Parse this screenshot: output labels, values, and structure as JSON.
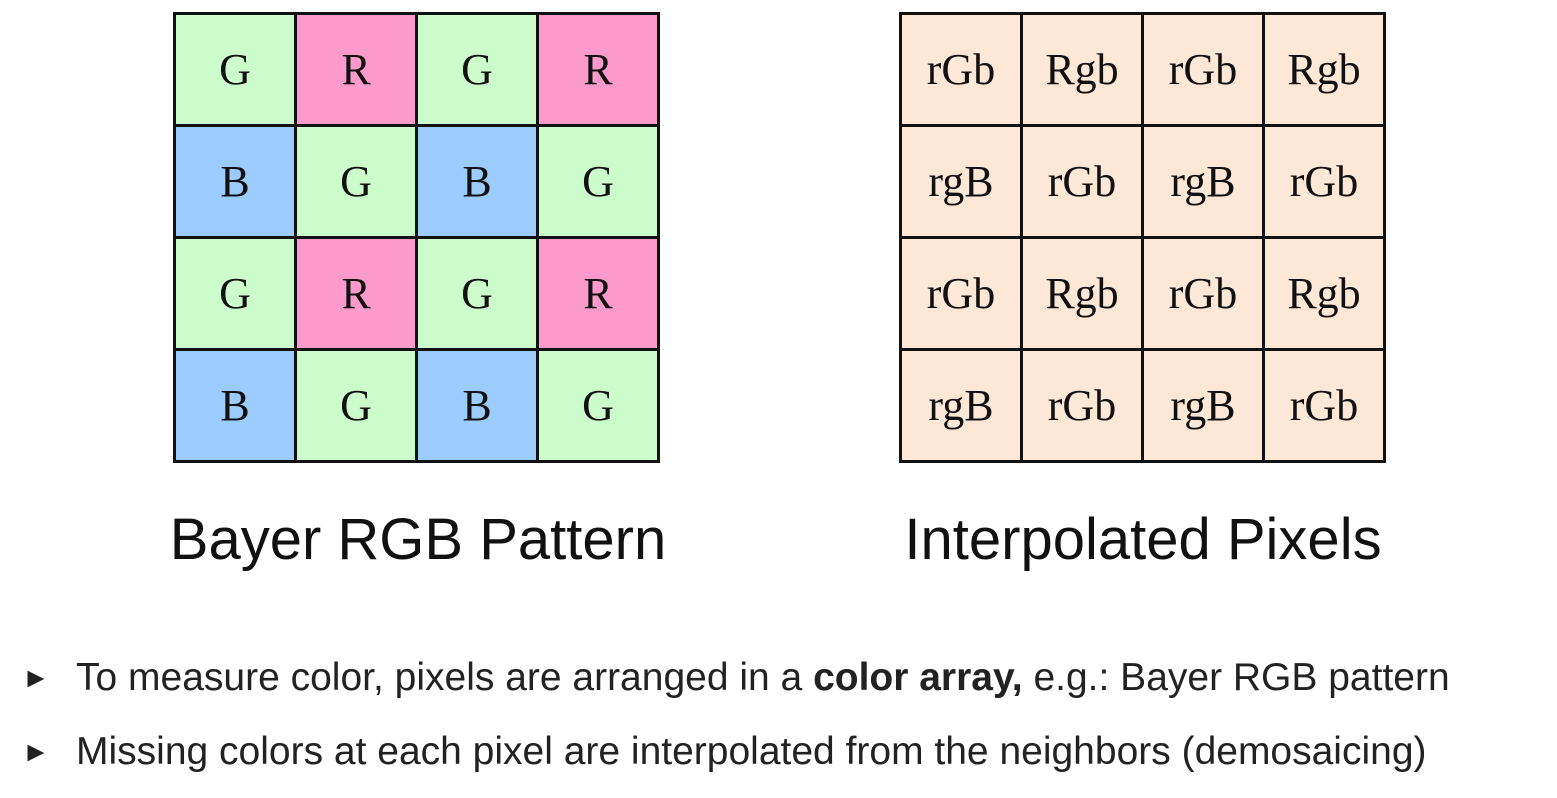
{
  "colors": {
    "G": "#ccfccc",
    "R": "#fd9acc",
    "B": "#9ccbfd",
    "interp": "#fde8d8"
  },
  "bayer": {
    "caption": "Bayer RGB Pattern",
    "rows": [
      [
        "G",
        "R",
        "G",
        "R"
      ],
      [
        "B",
        "G",
        "B",
        "G"
      ],
      [
        "G",
        "R",
        "G",
        "R"
      ],
      [
        "B",
        "G",
        "B",
        "G"
      ]
    ]
  },
  "interpolated": {
    "caption": "Interpolated Pixels",
    "rows": [
      [
        "rGb",
        "Rgb",
        "rGb",
        "Rgb"
      ],
      [
        "rgB",
        "rGb",
        "rgB",
        "rGb"
      ],
      [
        "rGb",
        "Rgb",
        "rGb",
        "Rgb"
      ],
      [
        "rgB",
        "rGb",
        "rgB",
        "rGb"
      ]
    ]
  },
  "bullets": {
    "marker": "►",
    "b1": {
      "before": "To measure color, pixels are arranged in a ",
      "bold": "color array,",
      "after": " e.g.: Bayer RGB pattern"
    },
    "b2": {
      "text": "Missing colors at each pixel are interpolated from the neighbors (demosaicing)"
    }
  }
}
